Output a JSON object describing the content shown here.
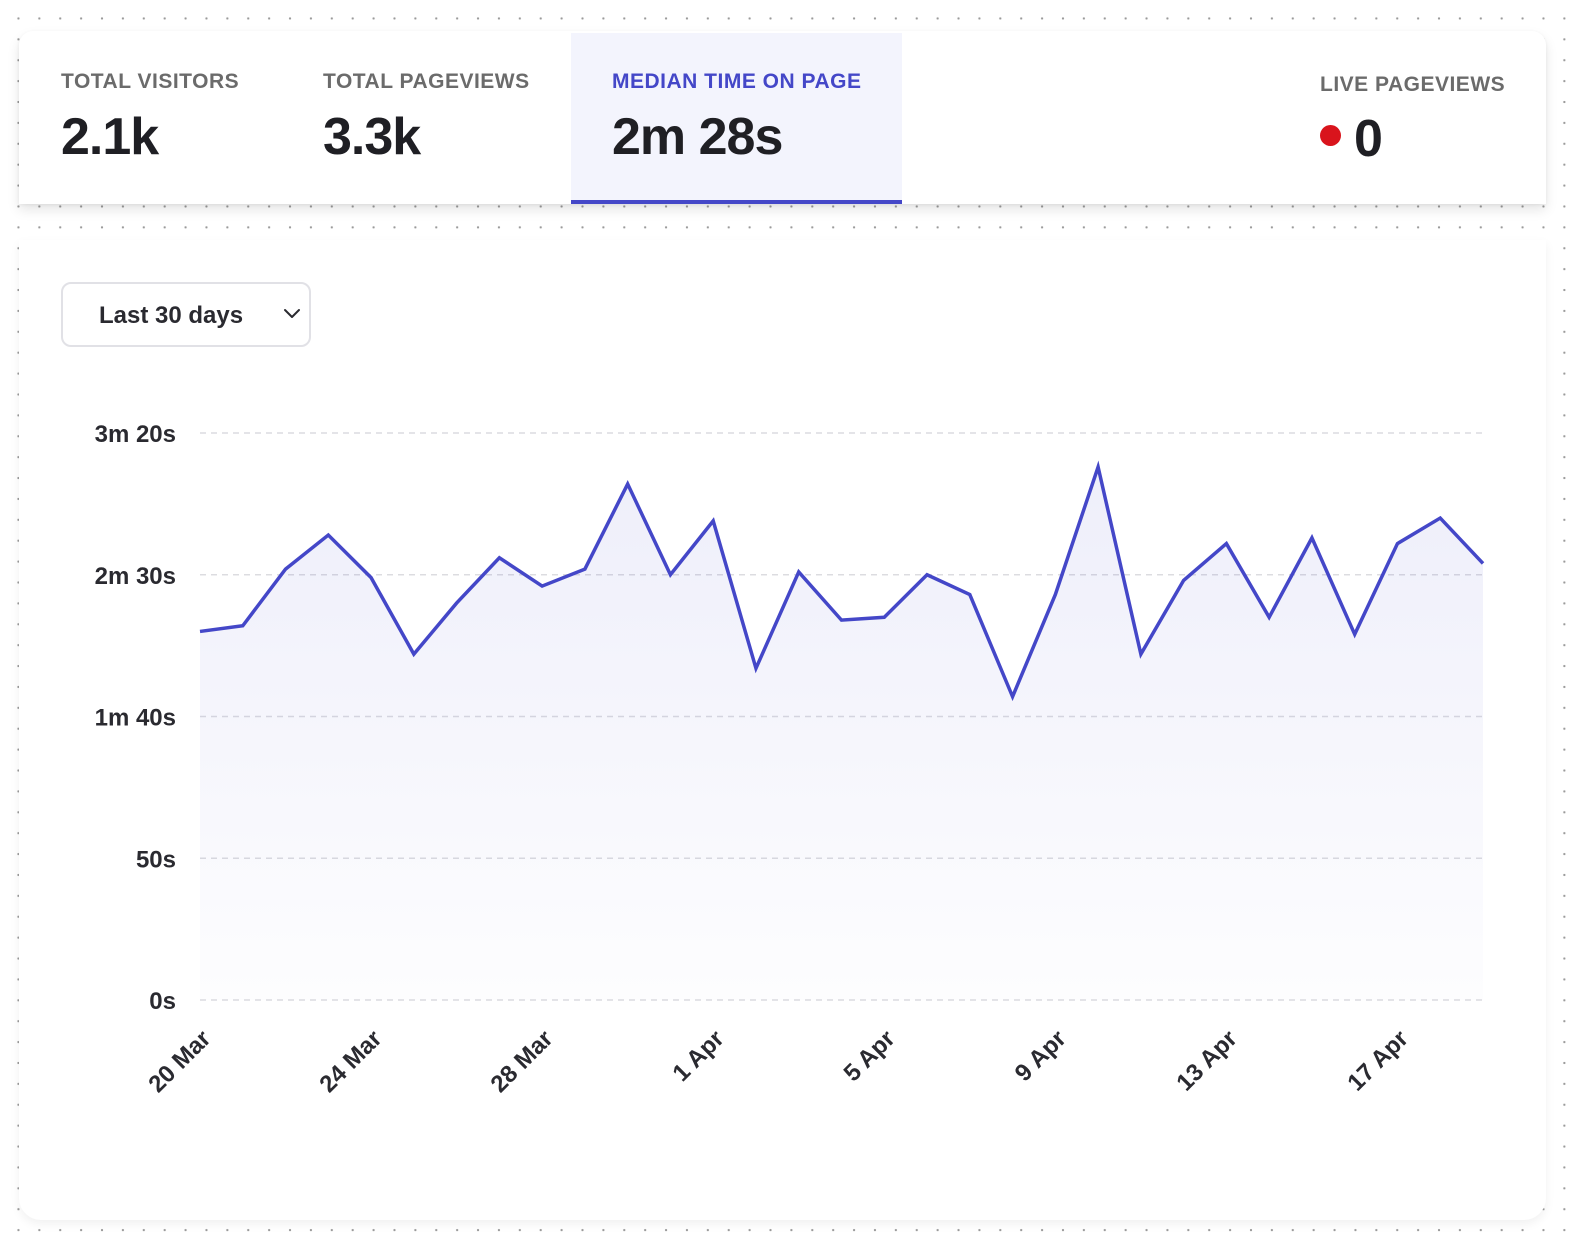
{
  "stats": {
    "total_visitors": {
      "label": "TOTAL VISITORS",
      "value": "2.1k"
    },
    "total_pageviews": {
      "label": "TOTAL PAGEVIEWS",
      "value": "3.3k"
    },
    "median_time": {
      "label": "MEDIAN TIME ON PAGE",
      "value": "2m 28s",
      "selected": true
    },
    "live_pageviews": {
      "label": "LIVE PAGEVIEWS",
      "value": "0",
      "indicator_color": "#d9141c"
    }
  },
  "range_select": {
    "value": "Last 30 days",
    "icon": "chevron-down-icon"
  },
  "colors": {
    "accent": "#4447c8",
    "selected_tab_bg": "#f3f4fd",
    "live": "#d9141c"
  },
  "chart_data": {
    "type": "area",
    "x": [
      "20 Mar",
      "21 Mar",
      "22 Mar",
      "23 Mar",
      "24 Mar",
      "25 Mar",
      "26 Mar",
      "27 Mar",
      "28 Mar",
      "29 Mar",
      "30 Mar",
      "31 Mar",
      "1 Apr",
      "2 Apr",
      "3 Apr",
      "4 Apr",
      "5 Apr",
      "6 Apr",
      "7 Apr",
      "8 Apr",
      "9 Apr",
      "10 Apr",
      "11 Apr",
      "12 Apr",
      "13 Apr",
      "14 Apr",
      "15 Apr",
      "16 Apr",
      "17 Apr",
      "18 Apr",
      "19 Apr"
    ],
    "series": [
      {
        "values": [
          130,
          132,
          152,
          164,
          149,
          122,
          140,
          156,
          146,
          152,
          182,
          150,
          169,
          117,
          151,
          134,
          135,
          150,
          143,
          107,
          143,
          188,
          122,
          148,
          161,
          135,
          163,
          129,
          161,
          170,
          154
        ]
      }
    ],
    "y_unit": "seconds",
    "ylim": [
      0,
      200
    ],
    "yticks": [
      {
        "value": 0,
        "label": "0s"
      },
      {
        "value": 50,
        "label": "50s"
      },
      {
        "value": 100,
        "label": "1m 40s"
      },
      {
        "value": 150,
        "label": "2m 30s"
      },
      {
        "value": 200,
        "label": "3m 20s"
      }
    ],
    "xtick_labels": [
      "20 Mar",
      "24 Mar",
      "28 Mar",
      "1 Apr",
      "5 Apr",
      "9 Apr",
      "13 Apr",
      "17 Apr"
    ],
    "grid": true,
    "legend": false,
    "line_color": "#4447c8"
  }
}
